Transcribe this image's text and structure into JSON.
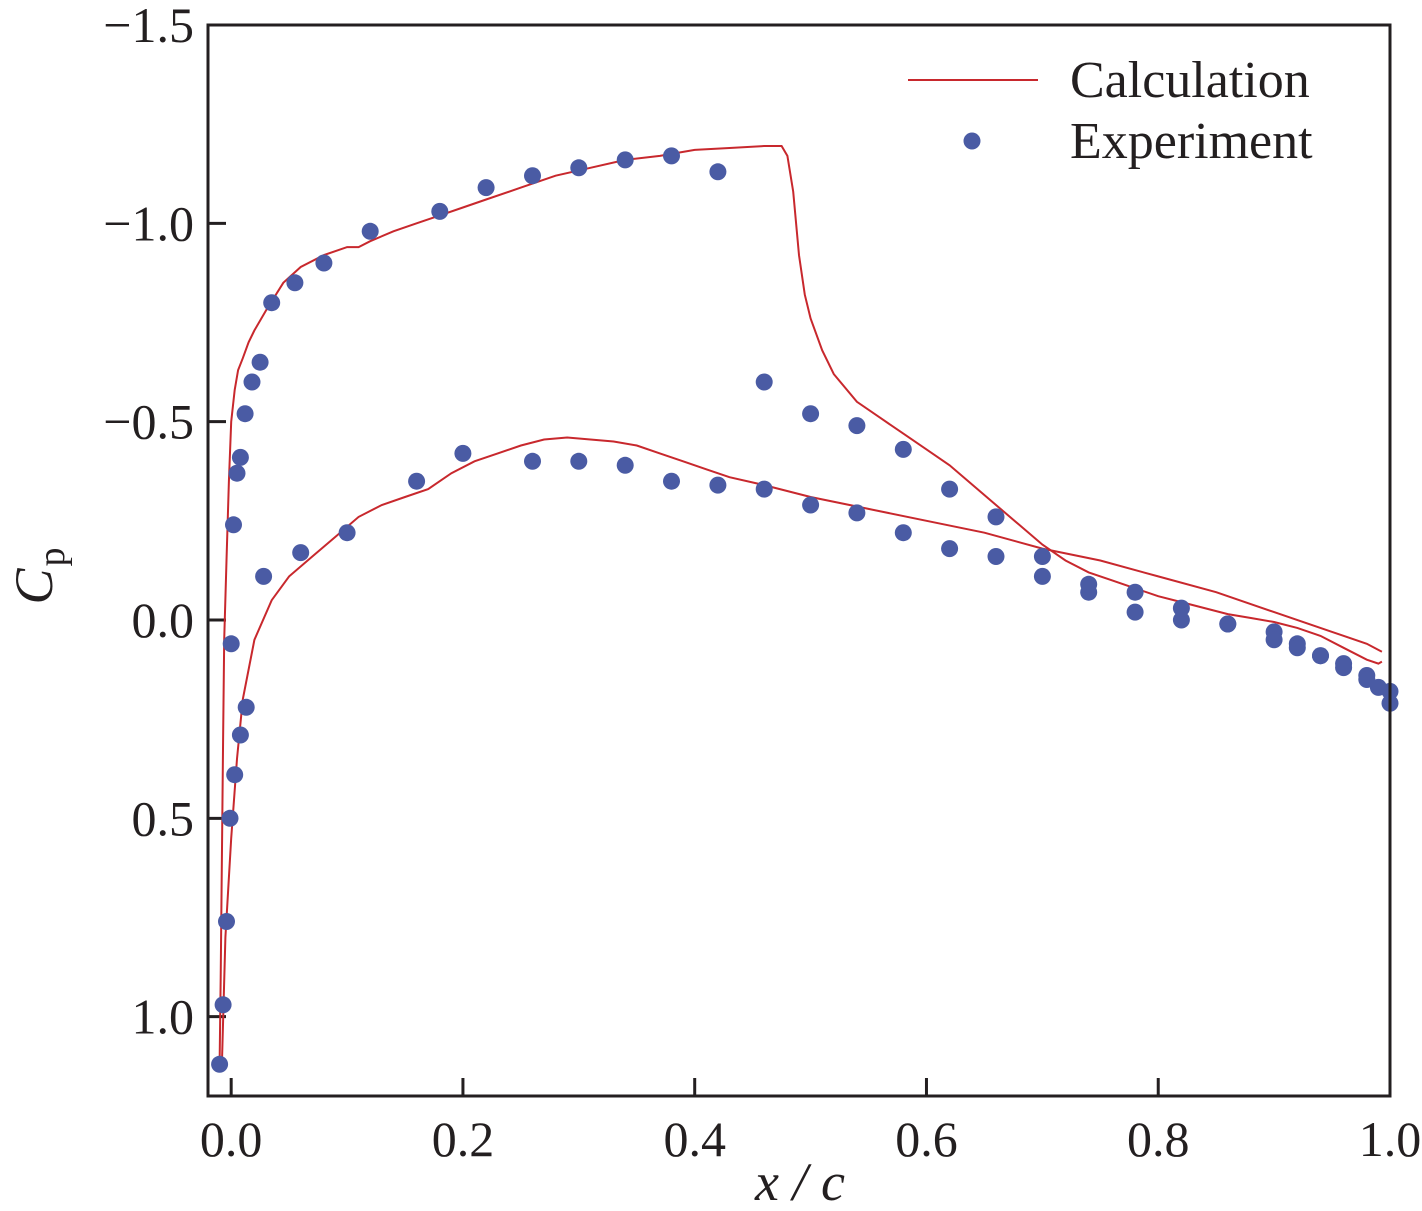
{
  "chart_data": {
    "type": "line",
    "xlabel": "x / c",
    "ylabel": "C",
    "ylabel_sub": "p",
    "xlim": [
      -0.02,
      1.0
    ],
    "ylim": [
      1.2,
      -1.5
    ],
    "y_inverted": true,
    "xticks": [
      0.0,
      0.2,
      0.4,
      0.6,
      0.8,
      1.0
    ],
    "xtick_labels": [
      "0.0",
      "0.2",
      "0.4",
      "0.6",
      "0.8",
      "1.0"
    ],
    "yticks": [
      -1.5,
      -1.0,
      -0.5,
      0.0,
      0.5,
      1.0
    ],
    "ytick_labels": [
      "−1.5",
      "−1.0",
      "−0.5",
      "0.0",
      "0.5",
      "1.0"
    ],
    "grid": false,
    "legend_position": "top-right",
    "colors": {
      "calculation": "#c8282d",
      "experiment": "#4a5ba4",
      "axis": "#231f20"
    },
    "series": [
      {
        "name": "Calculation",
        "style": "line",
        "upper": {
          "x": [
            -0.01,
            -0.009,
            -0.008,
            -0.007,
            -0.006,
            -0.004,
            -0.002,
            0.0,
            0.003,
            0.006,
            0.01,
            0.015,
            0.02,
            0.03,
            0.045,
            0.06,
            0.08,
            0.1,
            0.11,
            0.12,
            0.14,
            0.16,
            0.18,
            0.2,
            0.22,
            0.25,
            0.28,
            0.31,
            0.34,
            0.37,
            0.4,
            0.43,
            0.46,
            0.475,
            0.48,
            0.485,
            0.49,
            0.495,
            0.5,
            0.51,
            0.52,
            0.54,
            0.56,
            0.58,
            0.6,
            0.62,
            0.64,
            0.66,
            0.68,
            0.7,
            0.72,
            0.74,
            0.76,
            0.78,
            0.8,
            0.82,
            0.84,
            0.86,
            0.88,
            0.9,
            0.92,
            0.94,
            0.96,
            0.98,
            0.99,
            0.993
          ],
          "y": [
            1.12,
            0.9,
            0.6,
            0.3,
            0.05,
            -0.15,
            -0.35,
            -0.5,
            -0.58,
            -0.63,
            -0.66,
            -0.7,
            -0.73,
            -0.78,
            -0.85,
            -0.89,
            -0.92,
            -0.94,
            -0.94,
            -0.955,
            -0.98,
            -1.0,
            -1.02,
            -1.04,
            -1.06,
            -1.09,
            -1.12,
            -1.14,
            -1.16,
            -1.17,
            -1.185,
            -1.19,
            -1.195,
            -1.195,
            -1.17,
            -1.08,
            -0.92,
            -0.82,
            -0.76,
            -0.68,
            -0.62,
            -0.55,
            -0.51,
            -0.47,
            -0.43,
            -0.39,
            -0.34,
            -0.29,
            -0.24,
            -0.19,
            -0.15,
            -0.12,
            -0.1,
            -0.08,
            -0.06,
            -0.045,
            -0.03,
            -0.015,
            -0.005,
            0.005,
            0.02,
            0.04,
            0.07,
            0.1,
            0.11,
            0.105
          ]
        },
        "lower": {
          "x": [
            -0.008,
            -0.005,
            0.0,
            0.005,
            0.01,
            0.02,
            0.035,
            0.05,
            0.07,
            0.09,
            0.11,
            0.13,
            0.15,
            0.17,
            0.19,
            0.21,
            0.23,
            0.25,
            0.27,
            0.29,
            0.31,
            0.33,
            0.35,
            0.37,
            0.39,
            0.41,
            0.43,
            0.46,
            0.5,
            0.55,
            0.6,
            0.65,
            0.7,
            0.75,
            0.8,
            0.85,
            0.9,
            0.95,
            0.98,
            0.993
          ],
          "y": [
            1.12,
            0.8,
            0.55,
            0.35,
            0.2,
            0.05,
            -0.05,
            -0.11,
            -0.16,
            -0.21,
            -0.26,
            -0.29,
            -0.31,
            -0.33,
            -0.37,
            -0.4,
            -0.42,
            -0.44,
            -0.455,
            -0.46,
            -0.455,
            -0.45,
            -0.44,
            -0.42,
            -0.4,
            -0.38,
            -0.36,
            -0.34,
            -0.31,
            -0.28,
            -0.25,
            -0.22,
            -0.18,
            -0.15,
            -0.11,
            -0.07,
            -0.02,
            0.03,
            0.06,
            0.08
          ]
        }
      },
      {
        "name": "Experiment",
        "style": "marker",
        "upper": {
          "x": [
            0.0,
            0.002,
            0.005,
            0.008,
            0.012,
            0.018,
            0.025,
            0.035,
            0.055,
            0.08,
            0.12,
            0.18,
            0.22,
            0.26,
            0.3,
            0.34,
            0.38,
            0.42,
            0.46,
            0.5,
            0.54,
            0.58,
            0.62,
            0.66,
            0.7,
            0.74,
            0.78,
            0.82,
            0.86,
            0.9,
            0.92,
            0.94,
            0.96,
            0.98,
            1.0
          ],
          "y": [
            0.06,
            -0.24,
            -0.37,
            -0.41,
            -0.52,
            -0.6,
            -0.65,
            -0.8,
            -0.85,
            -0.9,
            -0.98,
            -1.03,
            -1.09,
            -1.12,
            -1.14,
            -1.16,
            -1.17,
            -1.13,
            -0.6,
            -0.52,
            -0.49,
            -0.43,
            -0.33,
            -0.26,
            -0.16,
            -0.07,
            -0.02,
            0.0,
            0.01,
            0.03,
            0.06,
            0.09,
            0.11,
            0.14,
            0.18
          ]
        },
        "lower": {
          "x": [
            -0.01,
            -0.007,
            -0.004,
            -0.001,
            0.003,
            0.008,
            0.013,
            0.028,
            0.06,
            0.1,
            0.16,
            0.2,
            0.26,
            0.3,
            0.34,
            0.38,
            0.42,
            0.46,
            0.5,
            0.54,
            0.58,
            0.62,
            0.66,
            0.7,
            0.74,
            0.78,
            0.82,
            0.86,
            0.9,
            0.92,
            0.94,
            0.96,
            0.98,
            0.99,
            1.0
          ],
          "y": [
            1.12,
            0.97,
            0.76,
            0.5,
            0.39,
            0.29,
            0.22,
            -0.11,
            -0.17,
            -0.22,
            -0.35,
            -0.42,
            -0.4,
            -0.4,
            -0.39,
            -0.35,
            -0.34,
            -0.33,
            -0.29,
            -0.27,
            -0.22,
            -0.18,
            -0.16,
            -0.11,
            -0.09,
            -0.07,
            -0.03,
            0.01,
            0.05,
            0.07,
            0.09,
            0.12,
            0.15,
            0.17,
            0.21
          ]
        }
      }
    ]
  }
}
